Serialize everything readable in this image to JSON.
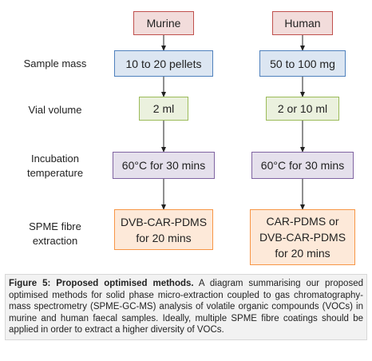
{
  "columns": {
    "murine": {
      "header": "Murine",
      "sample_mass": "10 to 20 pellets",
      "vial_volume": "2 ml",
      "incubation": "60°C for 30 mins",
      "spme_line1": "DVB-CAR-PDMS",
      "spme_line2": "for 20 mins"
    },
    "human": {
      "header": "Human",
      "sample_mass": "50 to 100 mg",
      "vial_volume": "2 or 10 ml",
      "incubation": "60°C for 30 mins",
      "spme_line1": "CAR-PDMS or",
      "spme_line2": "DVB-CAR-PDMS",
      "spme_line3": "for 20 mins"
    }
  },
  "row_labels": {
    "sample_mass": "Sample mass",
    "vial_volume": "Vial volume",
    "incubation_line1": "Incubation",
    "incubation_line2": "temperature",
    "spme_line1": "SPME fibre",
    "spme_line2": "extraction"
  },
  "caption": {
    "title": "Figure 5: Proposed optimised methods.",
    "text": " A diagram summarising our proposed optimised methods for solid phase micro-extraction coupled to gas chromatography-mass spectrometry (SPME-GC-MS) analysis of volatile organic compounds (VOCs) in murine and human faecal samples. Ideally, multiple SPME fibre coatings should be applied in order to extract a higher diversity of VOCs."
  },
  "colors": {
    "header": "#c0504d",
    "sample_mass": "#4f81bd",
    "vial_volume": "#9bbb59",
    "incubation": "#8064a2",
    "spme": "#f79646"
  }
}
